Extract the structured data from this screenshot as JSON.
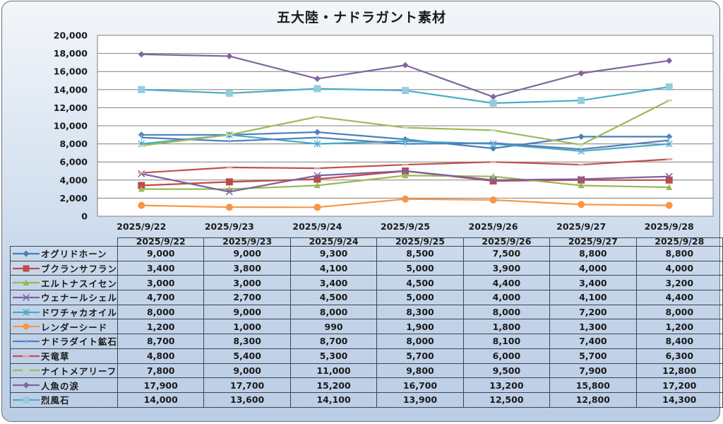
{
  "chart_data": {
    "type": "line",
    "title": "五大陸・ナドラガント素材",
    "xlabel": "",
    "ylabel": "",
    "ylim": [
      0,
      20000
    ],
    "ytick_step": 2000,
    "yticks": [
      "0",
      "2,000",
      "4,000",
      "6,000",
      "8,000",
      "10,000",
      "12,000",
      "14,000",
      "16,000",
      "18,000",
      "20,000"
    ],
    "grid": true,
    "legend": "data-table",
    "categories": [
      "2025/9/22",
      "2025/9/23",
      "2025/9/24",
      "2025/9/25",
      "2025/9/26",
      "2025/9/27",
      "2025/9/28"
    ],
    "series": [
      {
        "name": "オグリドホーン",
        "color": "#4a7ebb",
        "marker": "diamond",
        "values": [
          9000,
          9000,
          9300,
          8500,
          7500,
          8800,
          8800
        ]
      },
      {
        "name": "ブクランサフラン",
        "color": "#be4b48",
        "marker": "square",
        "values": [
          3400,
          3800,
          4100,
          5000,
          3900,
          4000,
          4000
        ]
      },
      {
        "name": "エルトナスイセン",
        "color": "#98b954",
        "marker": "triangle",
        "values": [
          3000,
          3000,
          3400,
          4500,
          4400,
          3400,
          3200
        ]
      },
      {
        "name": "ウェナールシェル",
        "color": "#7d5fa0",
        "marker": "x",
        "values": [
          4700,
          2700,
          4500,
          5000,
          4000,
          4100,
          4400
        ]
      },
      {
        "name": "ドワチャカオイル",
        "color": "#46aac5",
        "marker": "star",
        "values": [
          8000,
          9000,
          8000,
          8300,
          8000,
          7200,
          8000
        ]
      },
      {
        "name": "レンダーシード",
        "color": "#f79646",
        "marker": "circle",
        "values": [
          1200,
          1000,
          990,
          1900,
          1800,
          1300,
          1200
        ]
      },
      {
        "name": "ナドラダイト鉱石",
        "color": "#4f81bd",
        "marker": "plus",
        "values": [
          8700,
          8300,
          8700,
          8000,
          8100,
          7400,
          8400
        ]
      },
      {
        "name": "天竜草",
        "color": "#c0504d",
        "marker": "dash",
        "values": [
          4800,
          5400,
          5300,
          5700,
          6000,
          5700,
          6300
        ]
      },
      {
        "name": "ナイトメアリーフ",
        "color": "#9bbb59",
        "marker": "dash",
        "values": [
          7800,
          9000,
          11000,
          9800,
          9500,
          7900,
          12800
        ]
      },
      {
        "name": "人魚の涙",
        "color": "#8064a2",
        "marker": "diamond",
        "values": [
          17900,
          17700,
          15200,
          16700,
          13200,
          15800,
          17200
        ]
      },
      {
        "name": "烈風石",
        "color": "#4bacc6",
        "marker": "square",
        "marker_color": "#93cddd",
        "values": [
          14000,
          13600,
          14100,
          13900,
          12500,
          12800,
          14300
        ]
      }
    ],
    "table_values": [
      [
        "9,000",
        "9,000",
        "9,300",
        "8,500",
        "7,500",
        "8,800",
        "8,800"
      ],
      [
        "3,400",
        "3,800",
        "4,100",
        "5,000",
        "3,900",
        "4,000",
        "4,000"
      ],
      [
        "3,000",
        "3,000",
        "3,400",
        "4,500",
        "4,400",
        "3,400",
        "3,200"
      ],
      [
        "4,700",
        "2,700",
        "4,500",
        "5,000",
        "4,000",
        "4,100",
        "4,400"
      ],
      [
        "8,000",
        "9,000",
        "8,000",
        "8,300",
        "8,000",
        "7,200",
        "8,000"
      ],
      [
        "1,200",
        "1,000",
        "990",
        "1,900",
        "1,800",
        "1,300",
        "1,200"
      ],
      [
        "8,700",
        "8,300",
        "8,700",
        "8,000",
        "8,100",
        "7,400",
        "8,400"
      ],
      [
        "4,800",
        "5,400",
        "5,300",
        "5,700",
        "6,000",
        "5,700",
        "6,300"
      ],
      [
        "7,800",
        "9,000",
        "11,000",
        "9,800",
        "9,500",
        "7,900",
        "12,800"
      ],
      [
        "17,900",
        "17,700",
        "15,200",
        "16,700",
        "13,200",
        "15,800",
        "17,200"
      ],
      [
        "14,000",
        "13,600",
        "14,100",
        "13,900",
        "12,500",
        "12,800",
        "14,300"
      ]
    ]
  },
  "colors": {
    "frame_border": "#6b6f75",
    "gridline": "#7f7f7f",
    "plot_background": "#ffffff"
  }
}
